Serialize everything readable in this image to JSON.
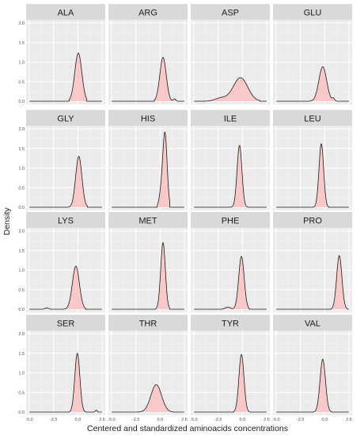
{
  "chart_data": {
    "type": "area",
    "facet_layout": "4x4 grid",
    "xlabel": "Centered and standardized aminoacids concentrations",
    "ylabel": "Density",
    "xlim": [
      -5.0,
      2.5
    ],
    "ylim": [
      0,
      2.0
    ],
    "x_ticks": [
      "-5.0",
      "-2.5",
      "0.0",
      "2.5"
    ],
    "y_ticks": [
      "0.0",
      "0.5",
      "1.0",
      "1.5",
      "2.0"
    ],
    "fill_color": "#f9c9c9",
    "line_color": "#1a1a1a",
    "panel_bg": "#ebebeb",
    "strip_bg": "#d9d9d9",
    "grid": true,
    "panels": [
      {
        "label": "ALA",
        "peaks": [
          {
            "mu": 0.05,
            "sd": 0.36,
            "w": 1.0
          }
        ],
        "x_range": [
          -0.9,
          0.9
        ],
        "peak_height": 1.23
      },
      {
        "label": "ARG",
        "peaks": [
          {
            "mu": 0.3,
            "sd": 0.33,
            "w": 0.95
          },
          {
            "mu": 1.5,
            "sd": 0.12,
            "w": 0.05
          }
        ],
        "x_range": [
          -0.6,
          1.8
        ],
        "peak_height": 1.12
      },
      {
        "label": "ASP",
        "peaks": [
          {
            "mu": -0.2,
            "sd": 0.75,
            "w": 0.88
          },
          {
            "mu": -2.2,
            "sd": 0.6,
            "w": 0.12
          }
        ],
        "x_range": [
          -4.0,
          1.8
        ],
        "peak_height": 0.6
      },
      {
        "label": "GLU",
        "peaks": [
          {
            "mu": -0.2,
            "sd": 0.4,
            "w": 0.93
          },
          {
            "mu": 0.9,
            "sd": 0.12,
            "w": 0.07
          }
        ],
        "x_range": [
          -1.6,
          1.3
        ],
        "peak_height": 0.88
      },
      {
        "label": "GLY",
        "peaks": [
          {
            "mu": 0.1,
            "sd": 0.32,
            "w": 1.0
          }
        ],
        "x_range": [
          -1.0,
          1.0
        ],
        "peak_height": 1.3
      },
      {
        "label": "HIS",
        "peaks": [
          {
            "mu": 0.5,
            "sd": 0.22,
            "w": 0.85
          },
          {
            "mu": 0.1,
            "sd": 0.2,
            "w": 0.15
          }
        ],
        "x_range": [
          -0.3,
          1.0
        ],
        "peak_height": 1.92
      },
      {
        "label": "ILE",
        "peaks": [
          {
            "mu": -0.3,
            "sd": 0.25,
            "w": 1.0
          }
        ],
        "x_range": [
          -1.2,
          0.6
        ],
        "peak_height": 1.58
      },
      {
        "label": "LEU",
        "peaks": [
          {
            "mu": -0.35,
            "sd": 0.24,
            "w": 1.0
          }
        ],
        "x_range": [
          -1.2,
          0.4
        ],
        "peak_height": 1.62
      },
      {
        "label": "LYS",
        "peaks": [
          {
            "mu": -0.2,
            "sd": 0.36,
            "w": 0.97
          },
          {
            "mu": -3.2,
            "sd": 0.18,
            "w": 0.03
          }
        ],
        "x_range": [
          -3.8,
          0.8
        ],
        "peak_height": 1.1
      },
      {
        "label": "MET",
        "peaks": [
          {
            "mu": 0.3,
            "sd": 0.24,
            "w": 1.0
          }
        ],
        "x_range": [
          -0.5,
          1.0
        ],
        "peak_height": 1.7
      },
      {
        "label": "PHE",
        "peaks": [
          {
            "mu": -0.1,
            "sd": 0.28,
            "w": 0.96
          },
          {
            "mu": -1.5,
            "sd": 0.25,
            "w": 0.04
          }
        ],
        "x_range": [
          -2.8,
          0.7
        ],
        "peak_height": 1.35
      },
      {
        "label": "PRO",
        "peaks": [
          {
            "mu": 1.5,
            "sd": 0.27,
            "w": 1.0
          }
        ],
        "x_range": [
          0.6,
          2.4
        ],
        "peak_height": 1.37
      },
      {
        "label": "SER",
        "peaks": [
          {
            "mu": -0.05,
            "sd": 0.26,
            "w": 0.97
          },
          {
            "mu": 1.9,
            "sd": 0.1,
            "w": 0.03
          }
        ],
        "x_range": [
          -0.9,
          2.1
        ],
        "peak_height": 1.5
      },
      {
        "label": "THR",
        "peaks": [
          {
            "mu": -0.4,
            "sd": 0.55,
            "w": 1.0
          }
        ],
        "x_range": [
          -2.2,
          1.3
        ],
        "peak_height": 0.7
      },
      {
        "label": "TYR",
        "peaks": [
          {
            "mu": -0.1,
            "sd": 0.26,
            "w": 1.0
          }
        ],
        "x_range": [
          -0.9,
          0.8
        ],
        "peak_height": 1.47
      },
      {
        "label": "VAL",
        "peaks": [
          {
            "mu": -0.2,
            "sd": 0.28,
            "w": 1.0
          }
        ],
        "x_range": [
          -1.2,
          0.7
        ],
        "peak_height": 1.35
      }
    ]
  }
}
